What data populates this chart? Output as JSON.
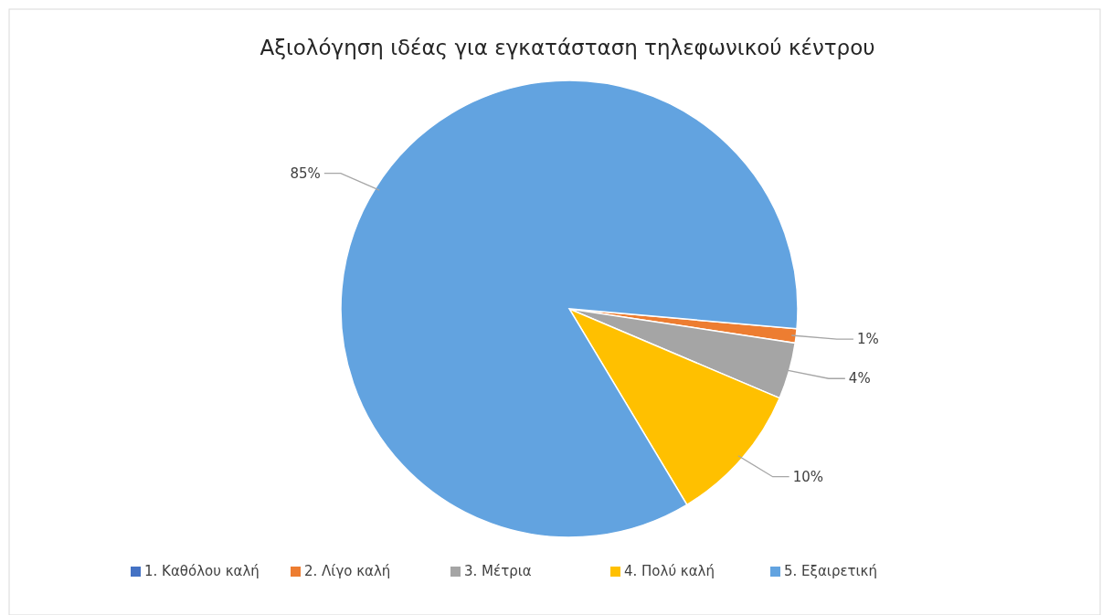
{
  "chart_data": {
    "type": "pie",
    "title": "Αξιολόγηση ιδέας για εγκατάσταση τηλεφωνικού κέντρου",
    "categories": [
      "1. Καθόλου καλή",
      "2. Λίγο καλή",
      "3. Μέτρια",
      "4. Πολύ καλή",
      "5. Εξαιρετική"
    ],
    "values": [
      0,
      1,
      4,
      10,
      85
    ],
    "colors": [
      "#4472c4",
      "#ed7d31",
      "#a5a5a5",
      "#ffc000",
      "#62a3e0"
    ],
    "value_labels": [
      null,
      "1%",
      "4%",
      "10%",
      "85%"
    ],
    "legend": "bottom"
  }
}
